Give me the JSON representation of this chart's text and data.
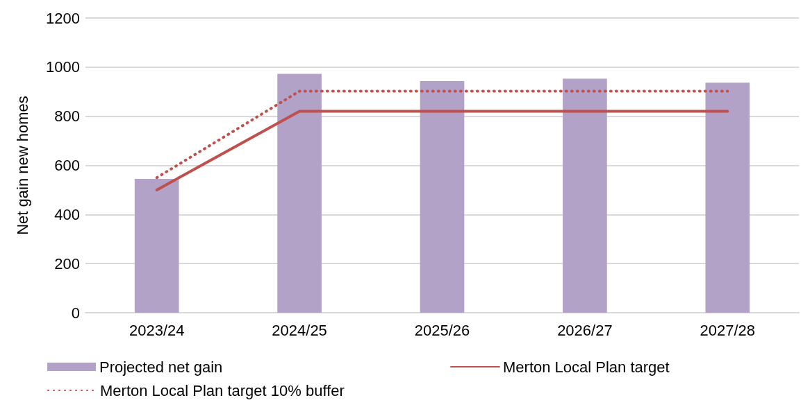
{
  "chart_data": {
    "type": "bar",
    "ylabel": "Net gain new homes",
    "categories": [
      "2023/24",
      "2024/25",
      "2025/26",
      "2026/27",
      "2027/28"
    ],
    "series": [
      {
        "name": "Projected net gain",
        "color": "#b3a2c7",
        "values": [
          545,
          973,
          943,
          953,
          937
        ]
      },
      {
        "name": "Merton Local Plan target",
        "type": "line",
        "color": "#c0504d",
        "line_style": "solid",
        "values": [
          500,
          820,
          820,
          820,
          820
        ]
      },
      {
        "name": "Merton Local Plan target 10% buffer",
        "type": "line",
        "color": "#c0504d",
        "line_style": "dotted",
        "values": [
          550,
          902,
          902,
          902,
          902
        ]
      }
    ],
    "ylim": [
      0,
      1200
    ],
    "yticks": [
      0,
      200,
      400,
      600,
      800,
      1000,
      1200
    ],
    "grid": "y",
    "legend": "bottom",
    "marker": "none"
  }
}
